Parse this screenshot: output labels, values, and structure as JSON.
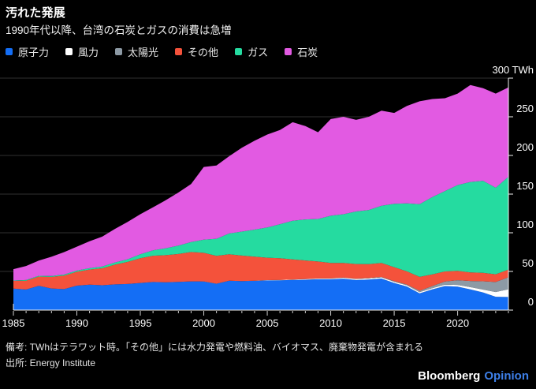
{
  "header": {
    "title": "汚れた発展",
    "subtitle": "1990年代以降、台湾の石炭とガスの消費は急増"
  },
  "legend": [
    {
      "label": "原子力",
      "color": "#146ef5"
    },
    {
      "label": "風力",
      "color": "#ffffff"
    },
    {
      "label": "太陽光",
      "color": "#8d9aa5"
    },
    {
      "label": "その他",
      "color": "#f4523b"
    },
    {
      "label": "ガス",
      "color": "#25dba0"
    },
    {
      "label": "石炭",
      "color": "#e25ae2"
    }
  ],
  "chart_data": {
    "type": "area",
    "stacked": true,
    "unit": "TWh",
    "grid": "horizontal",
    "legend_position": "top",
    "years": [
      1985,
      1986,
      1987,
      1988,
      1989,
      1990,
      1991,
      1992,
      1993,
      1994,
      1995,
      1996,
      1997,
      1998,
      1999,
      2000,
      2001,
      2002,
      2003,
      2004,
      2005,
      2006,
      2007,
      2008,
      2009,
      2010,
      2011,
      2012,
      2013,
      2014,
      2015,
      2016,
      2017,
      2018,
      2019,
      2020,
      2021,
      2022,
      2023,
      2024
    ],
    "series": [
      {
        "name": "原子力",
        "color": "#146ef5",
        "values": [
          27.8,
          26.6,
          31.4,
          28.0,
          27.1,
          31.6,
          32.9,
          32.1,
          33.3,
          33.8,
          35.1,
          36.3,
          36.0,
          36.5,
          37.1,
          37.0,
          34.1,
          38.0,
          37.4,
          37.9,
          38.4,
          38.6,
          39.0,
          39.3,
          39.9,
          39.9,
          40.5,
          38.9,
          39.6,
          40.8,
          35.1,
          30.5,
          21.6,
          26.7,
          31.1,
          30.3,
          26.8,
          22.9,
          17.2,
          16.9
        ]
      },
      {
        "name": "風力",
        "color": "#ffffff",
        "values": [
          0,
          0,
          0,
          0,
          0,
          0,
          0,
          0,
          0,
          0,
          0,
          0,
          0,
          0,
          0,
          0.1,
          0.1,
          0.1,
          0.1,
          0.2,
          0.4,
          0.5,
          0.6,
          0.8,
          0.9,
          1.0,
          1.3,
          1.4,
          1.5,
          1.5,
          1.5,
          1.5,
          1.7,
          1.7,
          1.9,
          2.3,
          2.9,
          3.6,
          6.2,
          10.0
        ]
      },
      {
        "name": "太陽光",
        "color": "#8d9aa5",
        "values": [
          0,
          0,
          0,
          0,
          0,
          0,
          0,
          0,
          0,
          0,
          0,
          0,
          0,
          0,
          0,
          0,
          0,
          0,
          0,
          0,
          0,
          0,
          0,
          0.1,
          0.1,
          0.1,
          0.2,
          0.3,
          0.4,
          0.6,
          0.9,
          1.1,
          1.7,
          2.7,
          4.0,
          6.1,
          8.0,
          10.7,
          12.9,
          15.5
        ]
      },
      {
        "name": "その他",
        "color": "#f4523b",
        "values": [
          10.0,
          11.5,
          12.0,
          15.0,
          17.5,
          18.0,
          19.5,
          22.0,
          25.5,
          28.5,
          32.0,
          34.0,
          35.0,
          36.0,
          38.0,
          37.0,
          36.0,
          34.0,
          33.0,
          31.0,
          29.0,
          28.0,
          26.0,
          24.0,
          22.0,
          20.0,
          19.0,
          19.0,
          18.0,
          18.0,
          18.0,
          17.0,
          18.0,
          15.0,
          13.0,
          12.0,
          11.0,
          11.0,
          10.0,
          10.0
        ]
      },
      {
        "name": "ガス",
        "color": "#25dba0",
        "values": [
          0.5,
          0.8,
          1.0,
          1.2,
          1.4,
          1.5,
          1.8,
          2.2,
          2.8,
          3.4,
          5.0,
          7.0,
          9.0,
          11.0,
          13.0,
          17.0,
          22.0,
          27.0,
          31.0,
          35.0,
          39.0,
          44.0,
          50.0,
          53.0,
          55.0,
          61.0,
          63.0,
          68.0,
          70.0,
          74.0,
          82.0,
          88.0,
          94.0,
          100.0,
          104.0,
          111.0,
          117.0,
          119.0,
          112.0,
          120.0
        ]
      },
      {
        "name": "石炭",
        "color": "#e25ae2",
        "values": [
          14.7,
          18.1,
          19.6,
          24.8,
          29.0,
          30.9,
          34.8,
          38.7,
          43.4,
          48.3,
          51.9,
          55.7,
          62.0,
          68.5,
          74.9,
          94.0,
          94.8,
          99.9,
          108.5,
          114.9,
          120.2,
          121.9,
          127.4,
          120.8,
          112.1,
          125.0,
          126.0,
          118.4,
          120.5,
          123.1,
          117.5,
          125.9,
          133.0,
          126.9,
          120.0,
          118.3,
          125.3,
          119.8,
          121.7,
          115.6
        ]
      }
    ],
    "y_axis": {
      "min": 0,
      "max": 300,
      "step": 50,
      "top_label": "300 TWh",
      "tick_labels": [
        "0",
        "50",
        "100",
        "150",
        "200",
        "250"
      ]
    },
    "x_axis": {
      "labeled_years": [
        1985,
        1990,
        1995,
        2000,
        2005,
        2010,
        2015,
        2020
      ],
      "tick_every_year": true
    }
  },
  "footer": {
    "note": "備考: TWhはテラワット時。「その他」には水力発電や燃料油、バイオマス、廃棄物発電が含まれる",
    "source": "出所: Energy Institute"
  },
  "branding": {
    "name": "Bloomberg",
    "suffix": "Opinion",
    "suffix_color": "#3d7fe8"
  },
  "colors": {
    "background": "#000000",
    "grid": "#2f2f2f",
    "axis": "#f0f0f0",
    "text": "#ffffff"
  }
}
